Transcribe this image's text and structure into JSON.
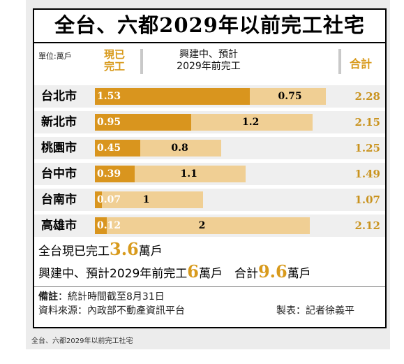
{
  "chart_data": {
    "type": "bar",
    "title": "全台、六都2029年以前完工社宅",
    "unit_label": "單位:萬戶",
    "series": [
      {
        "name": "現已完工",
        "values": [
          1.53,
          0.95,
          0.45,
          0.39,
          0.07,
          0.12
        ]
      },
      {
        "name": "興建中、預計2029年前完工",
        "values": [
          0.75,
          1.2,
          0.8,
          1.1,
          1,
          2
        ]
      }
    ],
    "value_labels": {
      "built": [
        "1.53",
        "0.95",
        "0.45",
        "0.39",
        "0.07",
        "0.12"
      ],
      "planned": [
        "0.75",
        "1.2",
        "0.8",
        "1.1",
        "1",
        "2"
      ],
      "total": [
        "2.28",
        "2.15",
        "1.25",
        "1.49",
        "1.07",
        "2.12"
      ]
    },
    "categories": [
      "台北市",
      "新北市",
      "桃園市",
      "台中市",
      "台南市",
      "高雄市"
    ],
    "totals": [
      2.28,
      2.15,
      1.25,
      1.49,
      1.07,
      2.12
    ],
    "total_label": "合計",
    "xlim": [
      0,
      2.28
    ]
  },
  "header": {
    "built_line1": "現已",
    "built_line2": "完工",
    "planned_line1": "興建中、預計",
    "planned_line2": "2029年前完工",
    "total": "合計"
  },
  "summary": {
    "line1_pre": "全台現已完工",
    "line1_num": "3.6",
    "line1_post": "萬戶",
    "line2_pre": "興建中、預計2029年前完工",
    "line2_num": "6",
    "line2_mid": "萬戶　合計",
    "line2_num2": "9.6",
    "line2_post": "萬戶"
  },
  "notes": {
    "remark_label": "備註",
    "remark_text": "：統計時間截至8月31日",
    "source": "資料來源：內政部不動產資訊平台",
    "credit": "製表：記者徐義平"
  },
  "caption": "全台、六都2029年以前完工社宅",
  "colors": {
    "built": "#d9951e",
    "planned": "#f0cf94",
    "accent": "#d89a1c"
  }
}
